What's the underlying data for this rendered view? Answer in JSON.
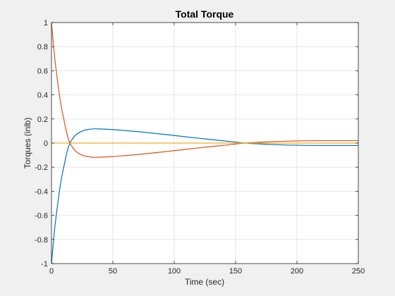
{
  "chart_data": {
    "type": "line",
    "title": "Total Torque",
    "xlabel": "Time (sec)",
    "ylabel": "Torques (inlb)",
    "xlim": [
      0,
      250
    ],
    "ylim": [
      -1,
      1
    ],
    "xticks": [
      0,
      50,
      100,
      150,
      200,
      250
    ],
    "yticks": [
      -1,
      -0.8,
      -0.6,
      -0.4,
      -0.2,
      0,
      0.2,
      0.4,
      0.6,
      0.8,
      1
    ],
    "xtick_labels": [
      "0",
      "50",
      "100",
      "150",
      "200",
      "250"
    ],
    "ytick_labels": [
      "-1",
      "-0.8",
      "-0.6",
      "-0.4",
      "-0.2",
      "0",
      "0.2",
      "0.4",
      "0.6",
      "0.8",
      "1"
    ],
    "grid": true,
    "series": [
      {
        "color": "#0072BD",
        "x": [
          0,
          2.5,
          5,
          7.5,
          10,
          12.5,
          15,
          17.5,
          20,
          25,
          30,
          35,
          40,
          50,
          60,
          70,
          80,
          100,
          120,
          140,
          158,
          180,
          200,
          220,
          250
        ],
        "y": [
          -1.0,
          -0.72,
          -0.51,
          -0.33,
          -0.2,
          -0.08,
          0.0,
          0.04,
          0.07,
          0.1,
          0.113,
          0.118,
          0.117,
          0.112,
          0.104,
          0.095,
          0.085,
          0.063,
          0.04,
          0.019,
          0.0,
          -0.012,
          -0.018,
          -0.02,
          -0.02
        ]
      },
      {
        "color": "#D95319",
        "x": [
          0,
          2.5,
          5,
          7.5,
          10,
          12.5,
          15,
          17.5,
          20,
          25,
          30,
          35,
          40,
          50,
          60,
          70,
          80,
          100,
          120,
          140,
          158,
          180,
          200,
          220,
          250
        ],
        "y": [
          1.0,
          0.72,
          0.51,
          0.33,
          0.2,
          0.08,
          0.0,
          -0.04,
          -0.07,
          -0.1,
          -0.113,
          -0.118,
          -0.117,
          -0.112,
          -0.104,
          -0.095,
          -0.085,
          -0.063,
          -0.04,
          -0.019,
          0.0,
          0.012,
          0.018,
          0.02,
          0.02
        ]
      },
      {
        "color": "#EDB120",
        "x": [
          0,
          250
        ],
        "y": [
          0,
          0
        ]
      }
    ]
  }
}
